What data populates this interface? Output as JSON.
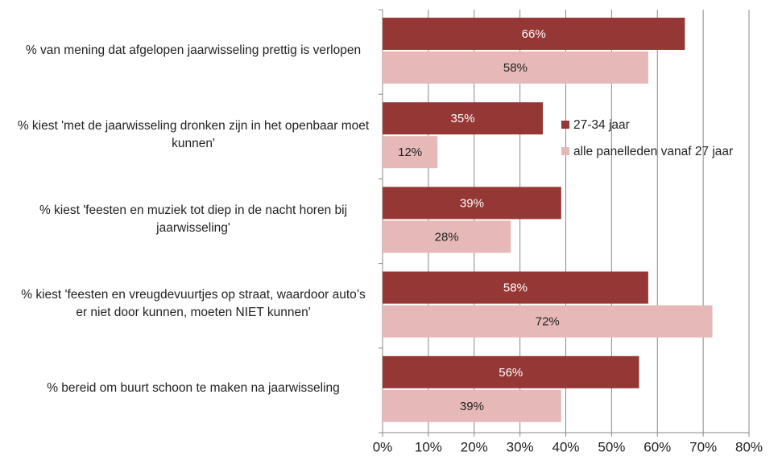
{
  "chart_data": {
    "type": "bar",
    "orientation": "horizontal",
    "categories": [
      "% van mening dat afgelopen jaarwisseling prettig is verlopen",
      "% kiest 'met de jaarwisseling dronken zijn in het openbaar moet kunnen'",
      "% kiest 'feesten en muziek tot diep in de nacht horen bij jaarwisseling'",
      "% kiest 'feesten en vreugdevuurtjes op straat, waardoor auto’s er niet door kunnen, moeten NIET kunnen'",
      "% bereid om buurt schoon te maken na jaarwisseling"
    ],
    "series": [
      {
        "name": "27-34 jaar",
        "color": "#953735",
        "values": [
          66,
          35,
          39,
          58,
          56
        ],
        "value_labels": [
          "66%",
          "35%",
          "39%",
          "58%",
          "56%"
        ]
      },
      {
        "name": "alle panelleden vanaf 27 jaar",
        "color": "#e6b9b8",
        "values": [
          58,
          12,
          28,
          72,
          39
        ],
        "value_labels": [
          "58%",
          "12%",
          "28%",
          "72%",
          "39%"
        ]
      }
    ],
    "xlim": [
      0,
      80
    ],
    "xticks": [
      {
        "value": 0,
        "label": "0%"
      },
      {
        "value": 10,
        "label": "10%"
      },
      {
        "value": 20,
        "label": "20%"
      },
      {
        "value": 30,
        "label": "30%"
      },
      {
        "value": 40,
        "label": "40%"
      },
      {
        "value": 50,
        "label": "50%"
      },
      {
        "value": 60,
        "label": "60%"
      },
      {
        "value": 70,
        "label": "70%"
      },
      {
        "value": 80,
        "label": "80%"
      }
    ],
    "grid": true,
    "legend": "right"
  }
}
